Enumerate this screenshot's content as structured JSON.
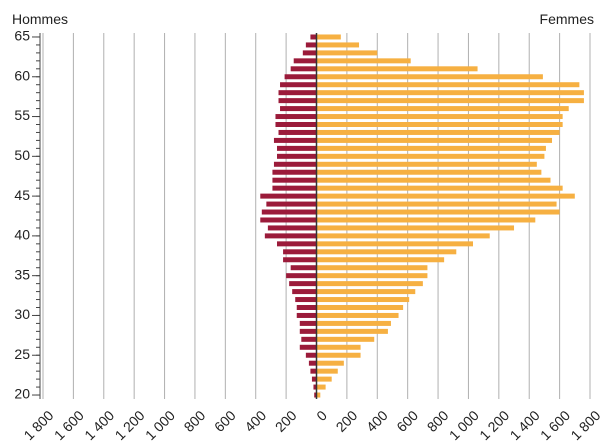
{
  "chart_data": {
    "type": "pyramid",
    "categories": [
      20,
      21,
      22,
      23,
      24,
      25,
      26,
      27,
      28,
      29,
      30,
      31,
      32,
      33,
      34,
      35,
      36,
      37,
      38,
      39,
      40,
      41,
      42,
      43,
      44,
      45,
      46,
      47,
      48,
      49,
      50,
      51,
      52,
      53,
      54,
      55,
      56,
      57,
      58,
      59,
      60,
      61,
      62,
      63,
      64,
      65
    ],
    "series": [
      {
        "name": "Hommes",
        "color": "#9b1b3a",
        "values": [
          -15,
          -20,
          -30,
          -40,
          -50,
          -70,
          -110,
          -100,
          -110,
          -110,
          -130,
          -130,
          -140,
          -160,
          -180,
          -200,
          -170,
          -220,
          -220,
          -260,
          -340,
          -320,
          -370,
          -360,
          -330,
          -370,
          -290,
          -290,
          -290,
          -280,
          -260,
          -260,
          -280,
          -250,
          -270,
          -270,
          -240,
          -250,
          -250,
          -240,
          -210,
          -170,
          -150,
          -90,
          -70,
          -40
        ]
      },
      {
        "name": "Femmes",
        "color": "#f6b042",
        "values": [
          25,
          60,
          100,
          140,
          180,
          290,
          290,
          380,
          470,
          490,
          540,
          570,
          610,
          650,
          700,
          730,
          730,
          840,
          920,
          1030,
          1140,
          1300,
          1440,
          1600,
          1580,
          1700,
          1620,
          1540,
          1480,
          1450,
          1500,
          1510,
          1550,
          1600,
          1620,
          1620,
          1660,
          1760,
          1760,
          1730,
          1490,
          1060,
          620,
          400,
          280,
          160
        ]
      }
    ],
    "xlim": [
      -1800,
      1800
    ],
    "xticks": [
      {
        "value": -1800,
        "label": "1 800"
      },
      {
        "value": -1600,
        "label": "1 600"
      },
      {
        "value": -1400,
        "label": "1 400"
      },
      {
        "value": -1200,
        "label": "1 200"
      },
      {
        "value": -1000,
        "label": "1 000"
      },
      {
        "value": -800,
        "label": "800"
      },
      {
        "value": -600,
        "label": "600"
      },
      {
        "value": -400,
        "label": "400"
      },
      {
        "value": -200,
        "label": "200"
      },
      0,
      200,
      400,
      600,
      800,
      {
        "value": 1000,
        "label": "1 000"
      },
      {
        "value": 1200,
        "label": "1 200"
      },
      {
        "value": 1400,
        "label": "1 400"
      },
      {
        "value": 1600,
        "label": "1 600"
      },
      {
        "value": 1800,
        "label": "1 800"
      }
    ],
    "ylim": [
      19.5,
      65.5
    ],
    "yticks": [
      20,
      25,
      30,
      35,
      40,
      45,
      50,
      55,
      60,
      65
    ],
    "grid": true
  }
}
